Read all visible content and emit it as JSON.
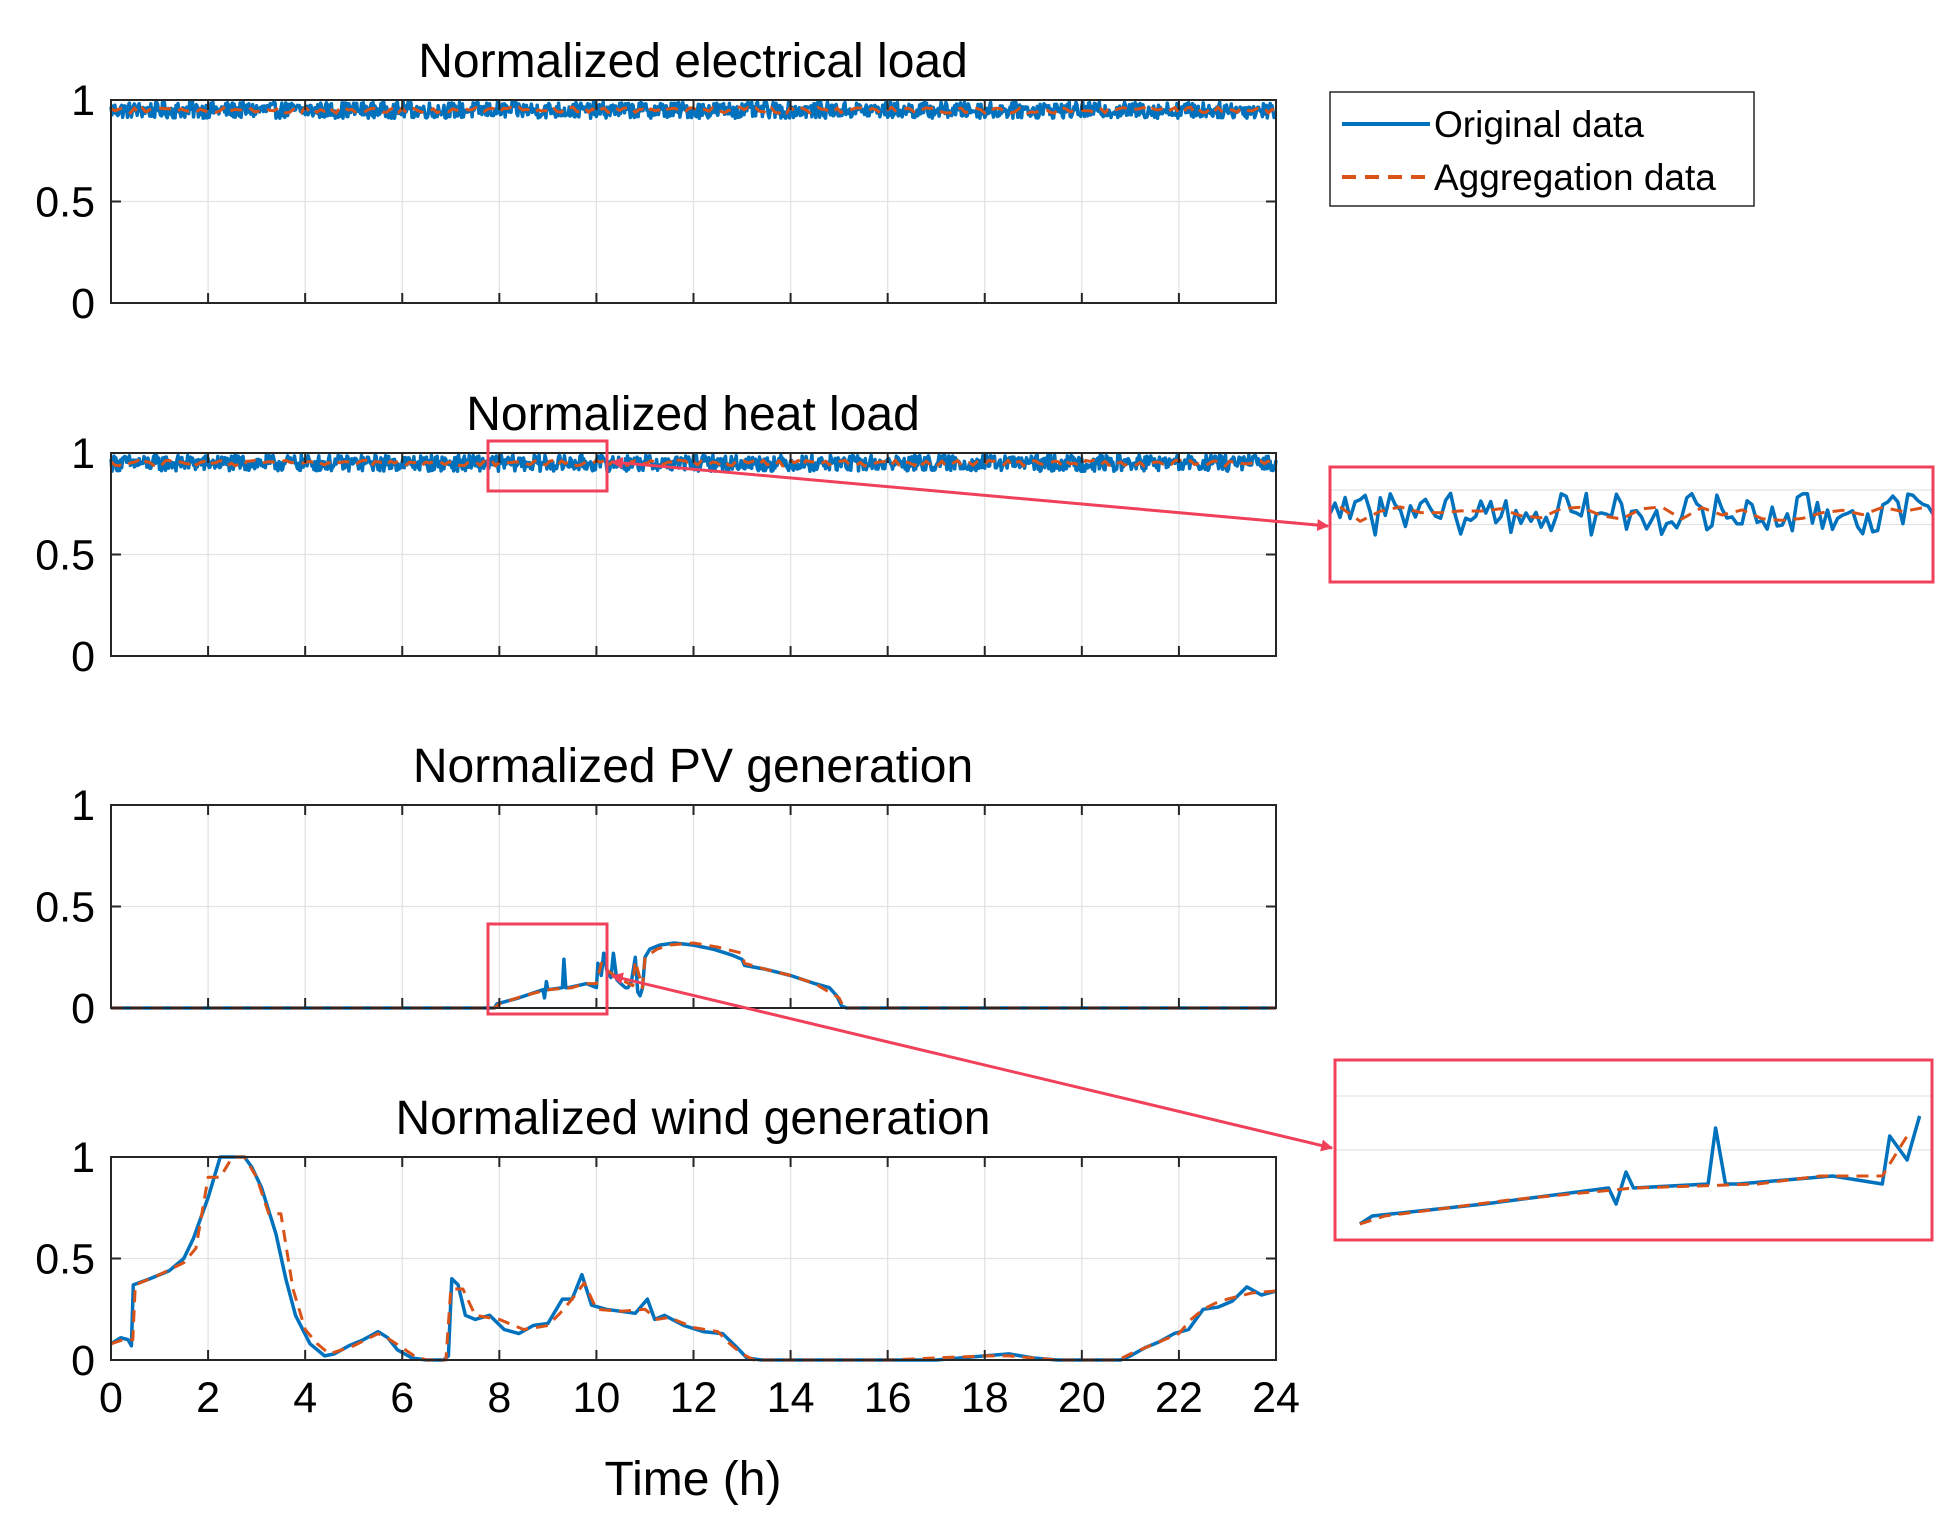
{
  "chart_data": {
    "type": "line",
    "xlabel": "Time (h)",
    "xlim": [
      0,
      24
    ],
    "x_ticks": [
      "0",
      "2",
      "4",
      "6",
      "8",
      "10",
      "12",
      "14",
      "16",
      "18",
      "20",
      "22",
      "24"
    ],
    "y_ticks": [
      "0",
      "0.5",
      "1"
    ],
    "grid": true,
    "legend": {
      "placement": "top-right, outside axes",
      "entries": [
        {
          "name": "Original data",
          "style": "solid",
          "color": "#0072BD"
        },
        {
          "name": "Aggregation data",
          "style": "dashed",
          "color": "#D95319"
        }
      ]
    },
    "colors": {
      "original": "#0072BD",
      "aggregation": "#D95319",
      "highlight": "#F0405A"
    },
    "panels": [
      {
        "title": "Normalized electrical load",
        "ylim": [
          0,
          1
        ],
        "series": [
          {
            "name": "Original data",
            "pattern": "noise",
            "base": 0.95,
            "amplitude": 0.04
          },
          {
            "name": "Aggregation data",
            "pattern": "noise",
            "base": 0.95,
            "amplitude": 0.015
          }
        ]
      },
      {
        "title": "Normalized heat load",
        "ylim": [
          0,
          1
        ],
        "zoom_window": {
          "x": [
            7.8,
            10.2
          ],
          "y": [
            0.82,
            1.04
          ]
        },
        "series": [
          {
            "name": "Original data",
            "pattern": "noise",
            "base": 0.95,
            "amplitude": 0.04
          },
          {
            "name": "Aggregation data",
            "pattern": "noise",
            "base": 0.95,
            "amplitude": 0.015
          }
        ]
      },
      {
        "title": "Normalized PV generation",
        "ylim": [
          0,
          1
        ],
        "zoom_window": {
          "x": [
            7.8,
            10.2
          ],
          "y": [
            -0.04,
            0.41
          ]
        },
        "series": [
          {
            "name": "Original data",
            "x": [
              0,
              7.9,
              7.95,
              8.4,
              8.9,
              8.93,
              8.97,
              9.0,
              9.3,
              9.33,
              9.37,
              9.42,
              9.8,
              10.0,
              10.03,
              10.1,
              10.15,
              10.22,
              10.3,
              10.35,
              10.42,
              10.5,
              10.55,
              10.6,
              10.65,
              10.72,
              10.8,
              10.85,
              10.9,
              10.95,
              11.0,
              11.1,
              11.3,
              11.6,
              12.0,
              12.4,
              12.8,
              13.0,
              13.05,
              13.5,
              14.0,
              14.5,
              14.8,
              14.95,
              15.05,
              15.15,
              16,
              24
            ],
            "y": [
              0,
              0,
              0.02,
              0.05,
              0.09,
              0.05,
              0.13,
              0.09,
              0.1,
              0.24,
              0.1,
              0.1,
              0.12,
              0.1,
              0.22,
              0.16,
              0.27,
              0.18,
              0.15,
              0.27,
              0.14,
              0.12,
              0.11,
              0.1,
              0.1,
              0.13,
              0.25,
              0.08,
              0.06,
              0.1,
              0.25,
              0.29,
              0.31,
              0.32,
              0.31,
              0.29,
              0.26,
              0.24,
              0.21,
              0.19,
              0.16,
              0.12,
              0.1,
              0.06,
              0.01,
              0,
              0,
              0
            ]
          },
          {
            "name": "Aggregation data",
            "x": [
              0,
              7.9,
              8.0,
              8.5,
              9.0,
              9.5,
              9.75,
              10.0,
              10.1,
              10.25,
              10.5,
              10.75,
              10.8,
              10.95,
              11.0,
              11.25,
              11.5,
              12.0,
              12.5,
              13.0,
              13.05,
              13.5,
              14.0,
              14.5,
              15.0,
              15.1,
              24
            ],
            "y": [
              0,
              0,
              0.02,
              0.06,
              0.09,
              0.1,
              0.12,
              0.12,
              0.22,
              0.18,
              0.14,
              0.11,
              0.23,
              0.1,
              0.25,
              0.29,
              0.31,
              0.32,
              0.3,
              0.27,
              0.22,
              0.19,
              0.16,
              0.12,
              0.05,
              0,
              0
            ]
          }
        ]
      },
      {
        "title": "Normalized wind generation",
        "ylim": [
          0,
          1
        ],
        "series": [
          {
            "name": "Original data",
            "x": [
              0,
              0.2,
              0.35,
              0.42,
              0.46,
              0.8,
              1.2,
              1.5,
              1.7,
              2.0,
              2.25,
              2.5,
              2.75,
              2.9,
              3.1,
              3.4,
              3.6,
              3.8,
              4.1,
              4.4,
              4.6,
              4.9,
              5.2,
              5.5,
              5.7,
              5.9,
              6.2,
              6.5,
              6.85,
              6.95,
              7.02,
              7.15,
              7.3,
              7.5,
              7.8,
              8.1,
              8.4,
              8.7,
              9.0,
              9.3,
              9.5,
              9.7,
              9.9,
              10.2,
              10.5,
              10.8,
              11.05,
              11.2,
              11.4,
              11.8,
              12.2,
              12.6,
              12.9,
              13.1,
              13.4,
              14,
              15,
              16,
              17,
              18,
              18.5,
              19,
              19.5,
              20,
              20.5,
              20.8,
              21.0,
              21.3,
              21.6,
              21.9,
              22.2,
              22.5,
              22.8,
              23.1,
              23.4,
              23.7,
              24
            ],
            "y": [
              0.08,
              0.11,
              0.1,
              0.07,
              0.37,
              0.4,
              0.44,
              0.5,
              0.6,
              0.8,
              1.0,
              1.0,
              1.0,
              0.95,
              0.85,
              0.62,
              0.4,
              0.22,
              0.08,
              0.02,
              0.03,
              0.07,
              0.1,
              0.14,
              0.11,
              0.05,
              0.01,
              0.0,
              0.0,
              0.02,
              0.4,
              0.37,
              0.22,
              0.2,
              0.22,
              0.15,
              0.13,
              0.17,
              0.18,
              0.3,
              0.3,
              0.42,
              0.27,
              0.25,
              0.24,
              0.23,
              0.3,
              0.2,
              0.22,
              0.17,
              0.14,
              0.13,
              0.06,
              0.01,
              0.0,
              0.0,
              0.0,
              0.0,
              0.0,
              0.02,
              0.03,
              0.01,
              0.0,
              0.0,
              0.0,
              0.0,
              0.02,
              0.06,
              0.09,
              0.13,
              0.15,
              0.25,
              0.26,
              0.29,
              0.36,
              0.32,
              0.34
            ]
          },
          {
            "name": "Aggregation data",
            "x": [
              0,
              0.25,
              0.45,
              0.5,
              1.0,
              1.5,
              1.75,
              2.0,
              2.25,
              2.5,
              2.75,
              3.0,
              3.25,
              3.5,
              3.75,
              4.0,
              4.25,
              4.5,
              5.0,
              5.5,
              5.75,
              6.0,
              6.25,
              6.5,
              6.9,
              7.0,
              7.25,
              7.5,
              8.0,
              8.5,
              9.0,
              9.25,
              9.5,
              9.75,
              10.0,
              10.5,
              11.0,
              11.25,
              11.5,
              12.0,
              12.5,
              12.75,
              13.0,
              13.25,
              14,
              16,
              18,
              18.5,
              19,
              19.5,
              20,
              20.75,
              21.0,
              21.5,
              22.0,
              22.25,
              22.5,
              22.75,
              23.0,
              23.5,
              24
            ],
            "y": [
              0.08,
              0.1,
              0.1,
              0.37,
              0.42,
              0.48,
              0.55,
              0.9,
              0.9,
              1.0,
              1.0,
              0.9,
              0.72,
              0.72,
              0.35,
              0.15,
              0.08,
              0.03,
              0.07,
              0.13,
              0.1,
              0.06,
              0.02,
              0.0,
              0.0,
              0.35,
              0.35,
              0.22,
              0.2,
              0.15,
              0.17,
              0.23,
              0.3,
              0.38,
              0.25,
              0.24,
              0.25,
              0.2,
              0.21,
              0.16,
              0.14,
              0.08,
              0.03,
              0.0,
              0.0,
              0.0,
              0.02,
              0.02,
              0.01,
              0.0,
              0.0,
              0.0,
              0.03,
              0.08,
              0.13,
              0.2,
              0.25,
              0.28,
              0.3,
              0.33,
              0.34
            ]
          }
        ]
      }
    ]
  }
}
